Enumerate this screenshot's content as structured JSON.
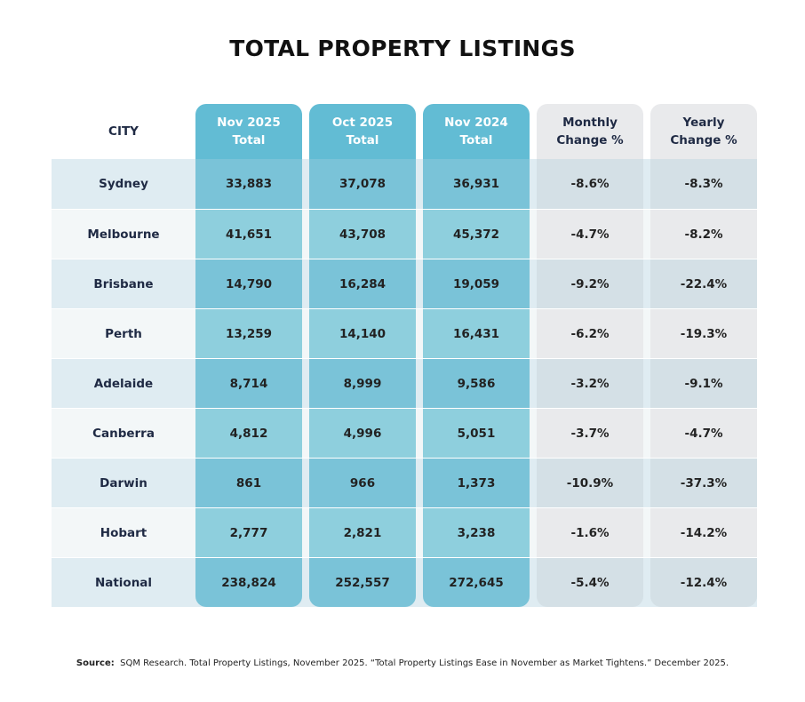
{
  "title": "TOTAL PROPERTY LISTINGS",
  "headers": [
    "CITY",
    "Nov 2025\nTotal",
    "Oct 2025\nTotal",
    "Nov 2024\nTotal",
    "Monthly\nChange %",
    "Yearly\nChange %"
  ],
  "rows": [
    [
      "Sydney",
      "33,883",
      "37,078",
      "36,931",
      "-8.6%",
      "-8.3%"
    ],
    [
      "Melbourne",
      "41,651",
      "43,708",
      "45,372",
      "-4.7%",
      "-8.2%"
    ],
    [
      "Brisbane",
      "14,790",
      "16,284",
      "19,059",
      "-9.2%",
      "-22.4%"
    ],
    [
      "Perth",
      "13,259",
      "14,140",
      "16,431",
      "-6.2%",
      "-19.3%"
    ],
    [
      "Adelaide",
      "8,714",
      "8,999",
      "9,586",
      "-3.2%",
      "-9.1%"
    ],
    [
      "Canberra",
      "4,812",
      "4,996",
      "5,051",
      "-3.7%",
      "-4.7%"
    ],
    [
      "Darwin",
      "861",
      "966",
      "1,373",
      "-10.9%",
      "-37.3%"
    ],
    [
      "Hobart",
      "2,777",
      "2,821",
      "3,238",
      "-1.6%",
      "-14.2%"
    ],
    [
      "National",
      "238,824",
      "252,557",
      "272,645",
      "-5.4%",
      "-12.4%"
    ]
  ],
  "source": {
    "label": "Source:",
    "text": "SQM Research. Total Property Listings, November 2025. “Total Property Listings Ease in November as Market Tightens.” December 2025."
  },
  "colors": {
    "header_blue": "#62bcd4",
    "cell_blue_dark": "#7ac3d8",
    "cell_blue_light": "#8ecfdd",
    "grey": "#e9eaec",
    "stripe": "#dfecf2"
  }
}
